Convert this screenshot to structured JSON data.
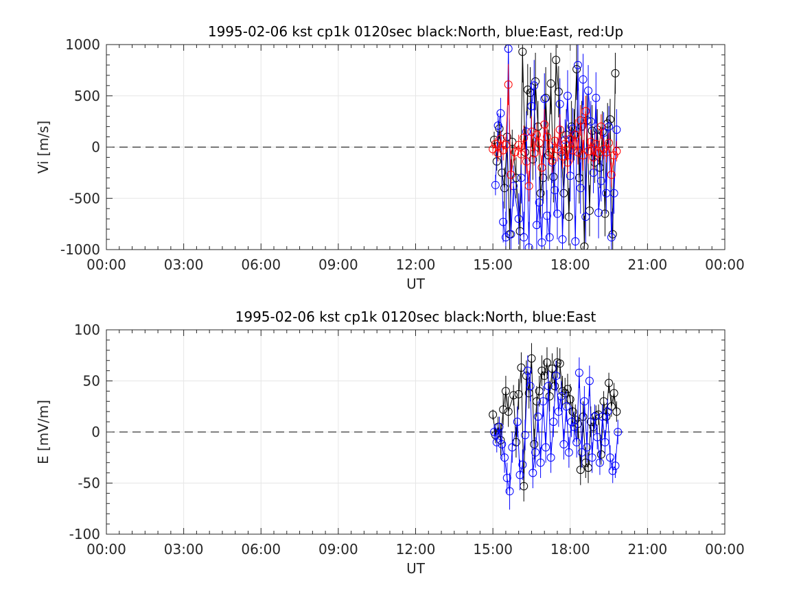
{
  "chart_data": [
    {
      "type": "scatter",
      "title": "1995-02-06 kst cp1k 0120sec black:North, blue:East, red:Up",
      "xlabel": "UT",
      "ylabel": "Vi [m/s]",
      "xlim": [
        0,
        24
      ],
      "ylim": [
        -1000,
        1000
      ],
      "xticks": [
        "00:00",
        "03:00",
        "06:00",
        "09:00",
        "12:00",
        "15:00",
        "18:00",
        "21:00",
        "00:00"
      ],
      "yticks": [
        "1000",
        "500",
        "0",
        "-500",
        "-1000"
      ],
      "grid": true,
      "zero_line": "dashed",
      "series": [
        {
          "name": "North",
          "color": "#000000",
          "x": [
            15.05,
            15.15,
            15.25,
            15.35,
            15.45,
            15.55,
            15.65,
            15.75,
            15.9,
            16.05,
            16.15,
            16.25,
            16.35,
            16.45,
            16.55,
            16.65,
            16.75,
            16.85,
            16.95,
            17.05,
            17.15,
            17.25,
            17.35,
            17.45,
            17.55,
            17.65,
            17.75,
            17.85,
            17.95,
            18.05,
            18.15,
            18.25,
            18.35,
            18.45,
            18.55,
            18.65,
            18.75,
            18.85,
            18.95,
            19.05,
            19.15,
            19.25,
            19.35,
            19.45,
            19.55,
            19.65,
            19.75
          ],
          "y": [
            70,
            -140,
            180,
            -250,
            -400,
            100,
            -850,
            50,
            -300,
            -820,
            930,
            -50,
            560,
            530,
            -120,
            640,
            200,
            -450,
            -300,
            480,
            -80,
            620,
            -290,
            850,
            540,
            -50,
            -450,
            120,
            -680,
            200,
            120,
            760,
            -300,
            200,
            -970,
            260,
            -620,
            160,
            -150,
            170,
            -200,
            150,
            -650,
            230,
            270,
            -850,
            720
          ],
          "error": [
            80,
            90,
            100,
            120,
            200,
            150,
            250,
            120,
            200,
            250,
            300,
            250,
            250,
            250,
            200,
            280,
            250,
            250,
            250,
            300,
            250,
            300,
            250,
            300,
            250,
            250,
            250,
            250,
            280,
            250,
            250,
            300,
            250,
            250,
            300,
            250,
            250,
            250,
            200,
            200,
            200,
            200,
            220,
            200,
            200,
            250,
            200
          ]
        },
        {
          "name": "East",
          "color": "#0000ff",
          "x": [
            15.1,
            15.2,
            15.3,
            15.4,
            15.5,
            15.6,
            15.7,
            15.8,
            16.0,
            16.1,
            16.2,
            16.3,
            16.4,
            16.5,
            16.6,
            16.7,
            16.8,
            16.9,
            17.0,
            17.1,
            17.2,
            17.3,
            17.4,
            17.5,
            17.6,
            17.7,
            17.8,
            17.9,
            18.0,
            18.1,
            18.2,
            18.3,
            18.4,
            18.5,
            18.6,
            18.7,
            18.8,
            18.9,
            19.0,
            19.1,
            19.2,
            19.3,
            19.4,
            19.5,
            19.6,
            19.7,
            19.8
          ],
          "y": [
            -370,
            210,
            330,
            -730,
            -880,
            960,
            -850,
            -380,
            -700,
            -300,
            -880,
            150,
            -980,
            400,
            600,
            -760,
            -540,
            -930,
            470,
            -670,
            -880,
            -150,
            -420,
            -650,
            420,
            -900,
            70,
            500,
            -280,
            180,
            -920,
            800,
            -400,
            660,
            -680,
            550,
            250,
            -250,
            480,
            -640,
            -330,
            140,
            -450,
            200,
            -880,
            -450,
            170
          ],
          "error": [
            100,
            120,
            150,
            200,
            250,
            250,
            250,
            200,
            250,
            250,
            250,
            200,
            250,
            250,
            250,
            250,
            250,
            250,
            250,
            250,
            250,
            200,
            250,
            250,
            250,
            250,
            200,
            250,
            250,
            200,
            250,
            250,
            250,
            250,
            250,
            250,
            200,
            200,
            250,
            250,
            200,
            200,
            200,
            200,
            250,
            200,
            200
          ]
        },
        {
          "name": "Up",
          "color": "#ff0000",
          "x": [
            15.0,
            15.1,
            15.2,
            15.3,
            15.4,
            15.5,
            15.6,
            15.7,
            15.85,
            16.0,
            16.1,
            16.2,
            16.3,
            16.4,
            16.5,
            16.6,
            16.7,
            16.8,
            16.9,
            17.0,
            17.1,
            17.2,
            17.3,
            17.4,
            17.5,
            17.6,
            17.7,
            17.8,
            17.9,
            18.0,
            18.1,
            18.2,
            18.3,
            18.4,
            18.5,
            18.6,
            18.7,
            18.8,
            18.9,
            19.0,
            19.1,
            19.2,
            19.3,
            19.4,
            19.5,
            19.6,
            19.7,
            19.8
          ],
          "y": [
            -20,
            30,
            -60,
            80,
            -30,
            20,
            610,
            -270,
            -50,
            20,
            -70,
            90,
            -140,
            -380,
            150,
            -60,
            120,
            40,
            -200,
            220,
            100,
            -50,
            -130,
            60,
            -20,
            170,
            -90,
            30,
            -150,
            80,
            -30,
            120,
            -50,
            260,
            -80,
            350,
            -40,
            50,
            -100,
            30,
            -60,
            200,
            -20,
            -50,
            40,
            -270,
            -80,
            -40
          ],
          "error": [
            60,
            60,
            80,
            80,
            100,
            80,
            200,
            150,
            80,
            100,
            100,
            120,
            120,
            150,
            150,
            120,
            120,
            120,
            120,
            150,
            120,
            120,
            120,
            120,
            120,
            150,
            120,
            120,
            120,
            120,
            120,
            150,
            120,
            150,
            150,
            150,
            120,
            120,
            120,
            120,
            100,
            120,
            100,
            100,
            100,
            120,
            100,
            100
          ]
        }
      ]
    },
    {
      "type": "scatter",
      "title": "1995-02-06 kst cp1k 0120sec black:North, blue:East",
      "xlabel": "UT",
      "ylabel": "E [mV/m]",
      "xlim": [
        0,
        24
      ],
      "ylim": [
        -100,
        100
      ],
      "xticks": [
        "00:00",
        "03:00",
        "06:00",
        "09:00",
        "12:00",
        "15:00",
        "18:00",
        "21:00",
        "00:00"
      ],
      "yticks": [
        "100",
        "50",
        "0",
        "-50",
        "-100"
      ],
      "grid": true,
      "zero_line": "dashed",
      "series": [
        {
          "name": "North",
          "color": "#000000",
          "x": [
            15.0,
            15.1,
            15.2,
            15.3,
            15.4,
            15.5,
            15.6,
            15.8,
            15.9,
            16.0,
            16.1,
            16.2,
            16.3,
            16.4,
            16.5,
            16.6,
            16.7,
            16.8,
            16.9,
            17.0,
            17.1,
            17.2,
            17.3,
            17.4,
            17.5,
            17.6,
            17.7,
            17.8,
            17.9,
            18.0,
            18.1,
            18.2,
            18.3,
            18.4,
            18.5,
            18.6,
            18.7,
            18.8,
            18.9,
            19.0,
            19.1,
            19.2,
            19.3,
            19.4,
            19.5,
            19.6,
            19.7,
            19.8
          ],
          "y": [
            17,
            -3,
            5,
            -8,
            22,
            40,
            20,
            36,
            -10,
            37,
            63,
            -53,
            55,
            38,
            72,
            -12,
            30,
            40,
            60,
            55,
            68,
            35,
            62,
            45,
            68,
            67,
            40,
            38,
            42,
            32,
            20,
            12,
            8,
            -37,
            15,
            -30,
            -35,
            10,
            5,
            16,
            17,
            -22,
            30,
            15,
            48,
            25,
            38,
            20
          ],
          "error": [
            5,
            8,
            10,
            15,
            15,
            15,
            15,
            10,
            15,
            15,
            15,
            15,
            15,
            15,
            15,
            15,
            15,
            15,
            15,
            15,
            15,
            15,
            15,
            15,
            15,
            15,
            15,
            15,
            15,
            15,
            15,
            15,
            15,
            15,
            15,
            15,
            15,
            15,
            10,
            10,
            10,
            10,
            10,
            10,
            10,
            10,
            10,
            10
          ]
        },
        {
          "name": "East",
          "color": "#0000ff",
          "x": [
            15.05,
            15.15,
            15.25,
            15.35,
            15.45,
            15.55,
            15.65,
            15.75,
            15.95,
            16.05,
            16.15,
            16.25,
            16.35,
            16.45,
            16.55,
            16.65,
            16.75,
            16.85,
            16.95,
            17.05,
            17.15,
            17.25,
            17.35,
            17.45,
            17.55,
            17.65,
            17.75,
            17.85,
            17.95,
            18.05,
            18.15,
            18.25,
            18.35,
            18.45,
            18.55,
            18.65,
            18.75,
            18.85,
            18.95,
            19.05,
            19.15,
            19.25,
            19.35,
            19.45,
            19.55,
            19.65,
            19.75,
            19.85
          ],
          "y": [
            0,
            -10,
            5,
            -12,
            -25,
            -45,
            -58,
            -15,
            10,
            -42,
            -32,
            -3,
            60,
            45,
            -40,
            -20,
            15,
            -30,
            30,
            -15,
            45,
            -25,
            10,
            55,
            20,
            35,
            -12,
            25,
            -20,
            10,
            5,
            -10,
            58,
            -20,
            30,
            -15,
            50,
            -25,
            15,
            -5,
            -30,
            15,
            -10,
            20,
            -25,
            -38,
            -33,
            0
          ],
          "error": [
            8,
            10,
            10,
            15,
            15,
            15,
            18,
            15,
            15,
            15,
            15,
            15,
            15,
            15,
            15,
            15,
            15,
            15,
            15,
            15,
            15,
            15,
            15,
            15,
            15,
            15,
            15,
            15,
            15,
            15,
            15,
            15,
            15,
            15,
            15,
            15,
            15,
            15,
            12,
            12,
            12,
            12,
            12,
            12,
            12,
            12,
            12,
            12
          ]
        }
      ]
    }
  ]
}
